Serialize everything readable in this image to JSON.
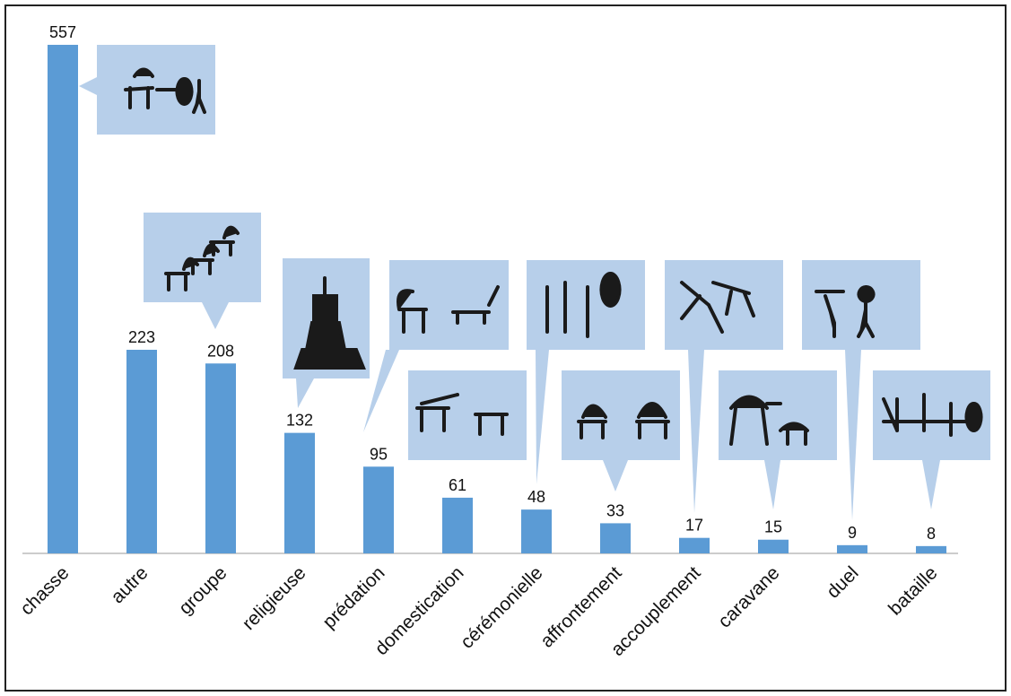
{
  "chart_data": {
    "type": "bar",
    "categories": [
      "chasse",
      "autre",
      "groupe",
      "religieuse",
      "prédation",
      "domestication",
      "cérémonielle",
      "affrontement",
      "accouplement",
      "caravane",
      "duel",
      "bataille"
    ],
    "values": [
      557,
      223,
      208,
      132,
      95,
      61,
      48,
      33,
      17,
      15,
      9,
      8
    ],
    "color": "#5b9bd5"
  }
}
